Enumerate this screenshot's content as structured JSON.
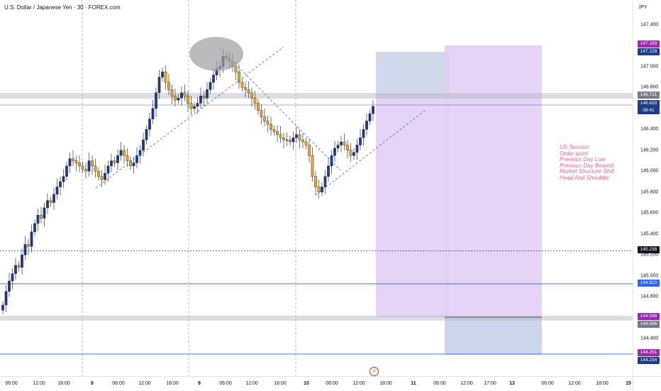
{
  "header": {
    "title": "U.S. Dollar / Japanese Yen · 30 · FOREX.com"
  },
  "price_axis": {
    "currency": "JPY",
    "ticks": [
      "147.400",
      "147.200",
      "147.000",
      "146.800",
      "146.600",
      "146.400",
      "146.200",
      "146.000",
      "145.800",
      "145.600",
      "145.400",
      "145.200",
      "145.000",
      "144.800",
      "144.600",
      "144.400",
      "144.200"
    ],
    "tags": [
      {
        "label": "147.193",
        "color": "#9c27b0"
      },
      {
        "label": "147.128",
        "color": "#1e3a8a"
      },
      {
        "label": "146.721",
        "color": "#787b86"
      },
      {
        "label": "146.633",
        "sub": "08:41",
        "color": "#1e3a8a"
      },
      {
        "label": "145.238",
        "color": "#131722"
      },
      {
        "label": "144.923",
        "color": "#2962ff"
      },
      {
        "label": "144.598",
        "color": "#9c27b0"
      },
      {
        "label": "144.596",
        "color": "#787b86"
      },
      {
        "label": "144.251",
        "color": "#9c27b0"
      },
      {
        "label": "144.234",
        "color": "#1e3a8a"
      }
    ]
  },
  "time_axis": {
    "ticks": [
      "06:00",
      "12:00",
      "18:00",
      "8",
      "06:00",
      "12:00",
      "18:00",
      "9",
      "06:00",
      "12:00",
      "18:00",
      "10",
      "06:00",
      "12:00",
      "18:00",
      "11",
      "06:00",
      "12:00",
      "17:00",
      "13",
      "06:00",
      "12:00",
      "18:00",
      "15"
    ]
  },
  "annotation": {
    "lines": [
      "US Session",
      "Order point",
      "Previous Day Low",
      "Previous Day Bearish",
      "Market Structure Shift",
      "Head And Shoulder"
    ]
  },
  "colors": {
    "bull": "#1e3a8a",
    "bear": "#f5a623",
    "purple_zone": "#e2ccf5",
    "blue_zone": "#c5cfe6",
    "level_blue": "#2962ff"
  },
  "icons": {
    "replay": "lightning-icon"
  },
  "chart_data": {
    "type": "candlestick",
    "symbol": "USDJPY",
    "timeframe": "30",
    "ylim": [
      144.2,
      147.5
    ],
    "levels": [
      {
        "price": 146.721,
        "kind": "resistance-zone"
      },
      {
        "price": 145.238,
        "kind": "dashed"
      },
      {
        "price": 144.923,
        "kind": "line"
      },
      {
        "price": 144.598,
        "kind": "support-zone"
      },
      {
        "price": 144.251,
        "kind": "line"
      }
    ],
    "closes": [
      144.72,
      144.85,
      144.95,
      145.02,
      145.1,
      145.08,
      145.2,
      145.3,
      145.28,
      145.42,
      145.5,
      145.58,
      145.55,
      145.65,
      145.72,
      145.7,
      145.78,
      145.85,
      145.9,
      145.95,
      146.05,
      146.12,
      146.1,
      146.08,
      146.05,
      146.02,
      146.0,
      146.1,
      146.05,
      146.0,
      145.95,
      145.92,
      145.98,
      146.05,
      146.1,
      146.08,
      146.15,
      146.2,
      146.15,
      146.1,
      146.05,
      146.08,
      146.15,
      146.2,
      146.3,
      146.4,
      146.5,
      146.6,
      146.75,
      146.9,
      146.95,
      146.85,
      146.78,
      146.72,
      146.68,
      146.7,
      146.75,
      146.72,
      146.65,
      146.6,
      146.62,
      146.65,
      146.72,
      146.7,
      146.78,
      146.85,
      146.92,
      146.98,
      147.0,
      147.1,
      147.08,
      147.05,
      147.0,
      146.95,
      146.85,
      146.8,
      146.78,
      146.75,
      146.7,
      146.65,
      146.58,
      146.52,
      146.48,
      146.45,
      146.4,
      146.38,
      146.35,
      146.32,
      146.3,
      146.3,
      146.28,
      146.32,
      146.35,
      146.3,
      146.28,
      146.25,
      146.15,
      145.95,
      145.85,
      145.8,
      145.85,
      145.95,
      146.05,
      146.15,
      146.22,
      146.25,
      146.28,
      146.25,
      146.2,
      146.15,
      146.18,
      146.25,
      146.32,
      146.4,
      146.48,
      146.55,
      146.62
    ]
  }
}
